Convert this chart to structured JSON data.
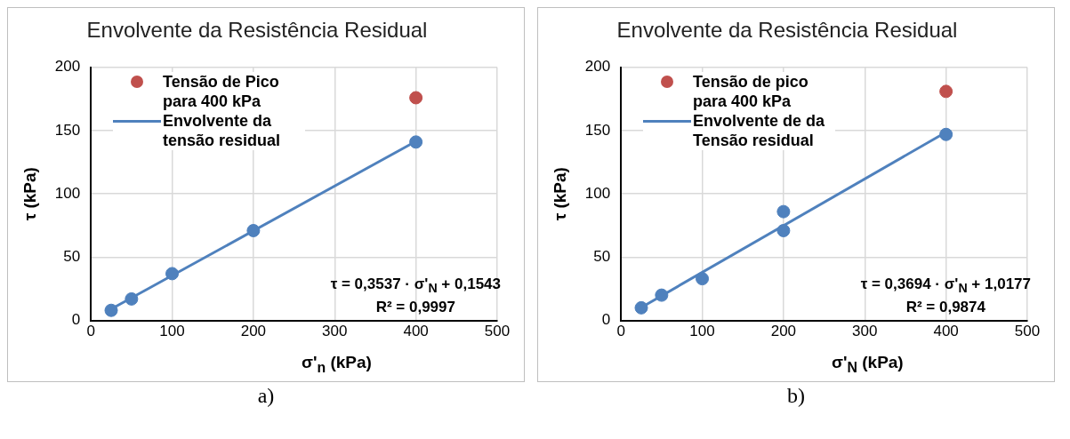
{
  "chart_data": [
    {
      "type": "scatter",
      "title": "Envolvente da Resistência Residual",
      "xlabel": "σ'$_{n}$ (kPa)",
      "ylabel": "τ (kPa)",
      "xlim": [
        0,
        500
      ],
      "xticks": [
        0,
        100,
        200,
        300,
        400,
        500
      ],
      "ylim": [
        0,
        200
      ],
      "yticks": [
        0,
        50,
        100,
        150,
        200
      ],
      "grid": true,
      "legend": "top left",
      "marker": "circle",
      "series": [
        {
          "color": "#4f81bd",
          "x": [
            25,
            50,
            100,
            200,
            400
          ],
          "values": [
            8,
            17,
            37,
            71,
            141
          ]
        },
        {
          "name": "Tensão de Pico para 400 kPa",
          "color": "#c0504d",
          "x": [
            400
          ],
          "values": [
            176
          ]
        },
        {
          "name": "Envolvente da tensão residual",
          "type": "line",
          "marker": "none",
          "color": "#4f81bd",
          "x": [
            25,
            400
          ],
          "values": [
            9,
            141.6
          ]
        }
      ],
      "annotations": [
        "τ = 0,3537 · σ'$_{N}$  + 0,1543",
        "R² = 0,9997",
        "a)"
      ]
    },
    {
      "type": "scatter",
      "title": "Envolvente da Resistência Residual",
      "xlabel": "σ'$_{N}$ (kPa)",
      "ylabel": "τ (kPa)",
      "xlim": [
        0,
        500
      ],
      "xticks": [
        0,
        100,
        200,
        300,
        400,
        500
      ],
      "ylim": [
        0,
        200
      ],
      "yticks": [
        0,
        50,
        100,
        150,
        200
      ],
      "grid": true,
      "legend": "top left",
      "marker": "circle",
      "series": [
        {
          "color": "#4f81bd",
          "x": [
            25,
            50,
            100,
            200,
            200,
            400
          ],
          "values": [
            10,
            20,
            33,
            86,
            71,
            147
          ]
        },
        {
          "name": "Tensão de pico para 400 kPa",
          "color": "#c0504d",
          "x": [
            400
          ],
          "values": [
            181
          ]
        },
        {
          "name": "Envolvente de da Tensão residual",
          "type": "line",
          "marker": "none",
          "color": "#4f81bd",
          "x": [
            25,
            400
          ],
          "values": [
            10.3,
            148.8
          ]
        }
      ],
      "annotations": [
        "τ = 0,3694 · σ'$_{N}$ + 1,0177",
        "R² = 0,9874",
        "b)"
      ]
    }
  ]
}
